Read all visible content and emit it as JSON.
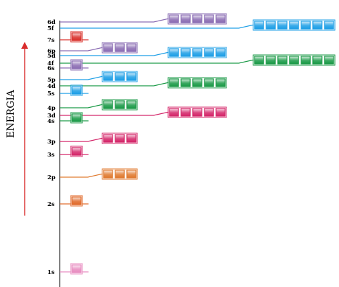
{
  "axis": {
    "label": "ENERGIA",
    "arrow_color": "#d92c2c"
  },
  "colors": {
    "s": "#d8365f",
    "p": "#e07a2f",
    "d": "#1b9a47",
    "f": "#e0195d",
    "sky": "#1e9fe6",
    "violet": "#8a6cb3",
    "pink": "#e88cc0",
    "red": "#d9302a"
  },
  "orbitals": [
    {
      "id": "1s",
      "label": "1s",
      "count": 1,
      "color": "#e88cc0"
    },
    {
      "id": "2s",
      "label": "2s",
      "count": 1,
      "color": "#e06a2a"
    },
    {
      "id": "2p",
      "label": "2p",
      "count": 3,
      "color": "#e07a2f"
    },
    {
      "id": "3s",
      "label": "3s",
      "count": 1,
      "color": "#d4276a"
    },
    {
      "id": "3p",
      "label": "3p",
      "count": 3,
      "color": "#d4276a"
    },
    {
      "id": "4s",
      "label": "4s",
      "count": 1,
      "color": "#1b9a47"
    },
    {
      "id": "3d",
      "label": "3d",
      "count": 5,
      "color": "#d4276a"
    },
    {
      "id": "4p",
      "label": "4p",
      "count": 3,
      "color": "#1b9a47"
    },
    {
      "id": "5s",
      "label": "5s",
      "count": 1,
      "color": "#1e9fe6"
    },
    {
      "id": "4d",
      "label": "4d",
      "count": 5,
      "color": "#1b9a47"
    },
    {
      "id": "5p",
      "label": "5p",
      "count": 3,
      "color": "#1e9fe6"
    },
    {
      "id": "6s",
      "label": "6s",
      "count": 1,
      "color": "#8a6cb3"
    },
    {
      "id": "4f",
      "label": "4f",
      "count": 7,
      "color": "#1b9a47"
    },
    {
      "id": "5d",
      "label": "5d",
      "count": 5,
      "color": "#1e9fe6"
    },
    {
      "id": "6p",
      "label": "6p",
      "count": 3,
      "color": "#8a6cb3"
    },
    {
      "id": "7s",
      "label": "7s",
      "count": 1,
      "color": "#d9302a"
    },
    {
      "id": "5f",
      "label": "5f",
      "count": 7,
      "color": "#1e9fe6"
    },
    {
      "id": "6d",
      "label": "6d",
      "count": 5,
      "color": "#8a6cb3"
    }
  ]
}
